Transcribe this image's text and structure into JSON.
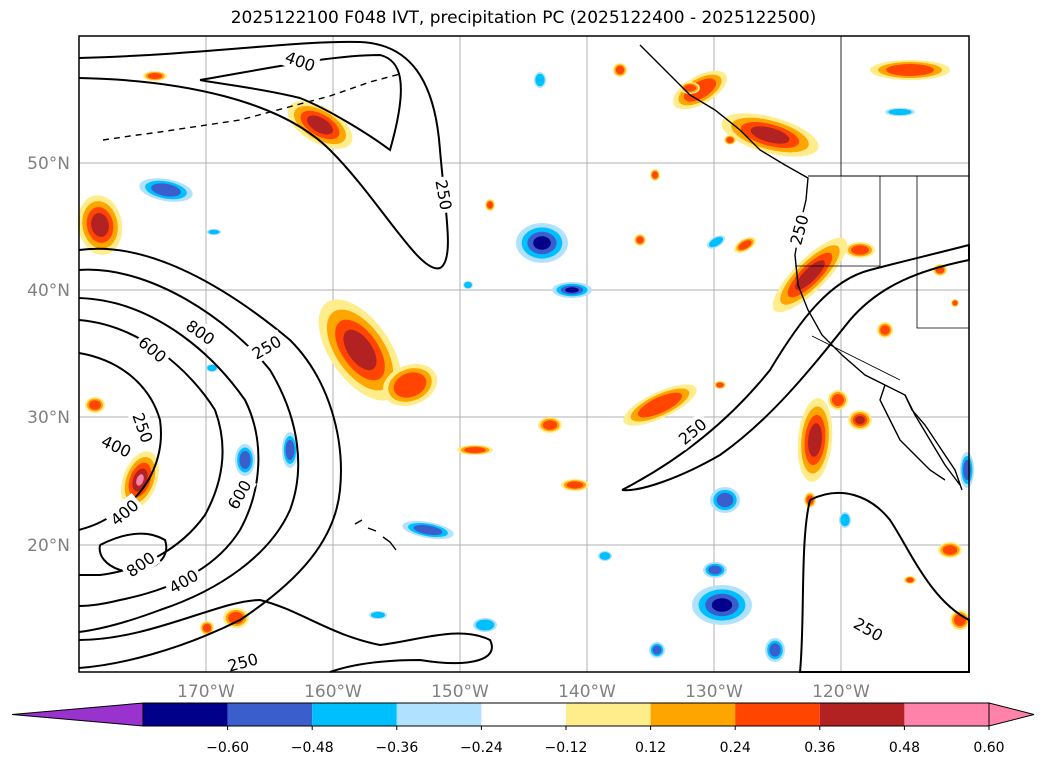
{
  "title": "2025122100 F048 IVT, precipitation PC (2025122400 - 2025122500)",
  "lon_labels": [
    "170°W",
    "160°W",
    "150°W",
    "140°W",
    "130°W",
    "120°W"
  ],
  "lat_labels": [
    "50°N",
    "40°N",
    "30°N",
    "20°N"
  ],
  "colorbar": {
    "ticks": [
      "−0.60",
      "−0.48",
      "−0.36",
      "−0.24",
      "−0.12",
      "0.12",
      "0.24",
      "0.36",
      "0.48",
      "0.60"
    ],
    "colors": [
      "#9a32cd",
      "#00008b",
      "#3a5fcd",
      "#00bfff",
      "#b0e2ff",
      "#ffffff",
      "#ffec8b",
      "#ffa500",
      "#ff4500",
      "#b22222",
      "#ff82ab",
      "#ff82ab"
    ]
  },
  "contour_labels": [
    "400",
    "250",
    "800",
    "600",
    "250",
    "250",
    "400",
    "400",
    "600",
    "800",
    "400",
    "250",
    "250",
    "250",
    "250"
  ],
  "colors": {
    "pos_light": "#ffec8b",
    "pos_orange": "#ffa500",
    "pos_red": "#ff4500",
    "pos_dark": "#b22222",
    "pos_pink": "#ff82ab",
    "neg_light": "#b0e2ff",
    "neg_cyan": "#00bfff",
    "neg_blue": "#3a5fcd",
    "neg_navy": "#00008b"
  }
}
